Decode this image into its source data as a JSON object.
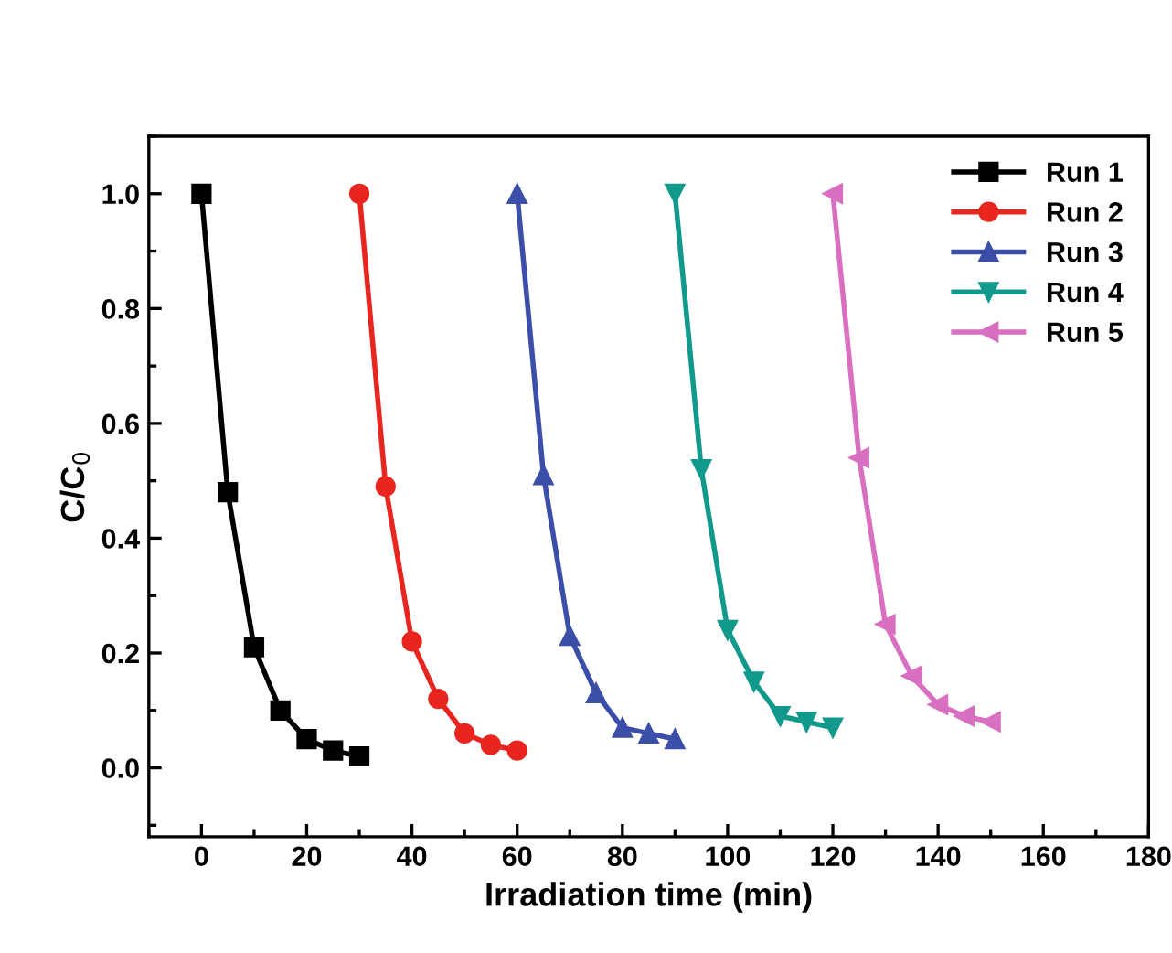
{
  "chart_data": {
    "type": "line",
    "xlabel": "Irradiation time (min)",
    "ylabel": "C/C$_{0}$",
    "xlim": [
      -10,
      180
    ],
    "ylim": [
      -0.12,
      1.1
    ],
    "xticks": [
      0,
      20,
      40,
      60,
      80,
      100,
      120,
      140,
      160,
      180
    ],
    "yticks": [
      {
        "value": 0,
        "label": "0.0"
      },
      0.2,
      0.4,
      0.6,
      0.8,
      {
        "value": 1,
        "label": "1.0"
      }
    ],
    "grid": false,
    "legend": "top right",
    "line_style": "solid",
    "series": [
      {
        "name": "Run 1",
        "color": "#000000",
        "marker": "square",
        "x": [
          0,
          5,
          10,
          15,
          20,
          25,
          30
        ],
        "values": [
          1.0,
          0.48,
          0.21,
          0.1,
          0.05,
          0.03,
          0.02
        ]
      },
      {
        "name": "Run 2",
        "color": "#e8251f",
        "marker": "circle",
        "x": [
          30,
          35,
          40,
          45,
          50,
          55,
          60
        ],
        "values": [
          1.0,
          0.49,
          0.22,
          0.12,
          0.06,
          0.04,
          0.03
        ]
      },
      {
        "name": "Run 3",
        "color": "#3b4fa8",
        "marker": "triangle-up",
        "x": [
          60,
          65,
          70,
          75,
          80,
          85,
          90
        ],
        "values": [
          1.0,
          0.51,
          0.23,
          0.13,
          0.07,
          0.06,
          0.05
        ]
      },
      {
        "name": "Run 4",
        "color": "#119a8c",
        "marker": "triangle-down",
        "x": [
          90,
          95,
          100,
          105,
          110,
          115,
          120
        ],
        "values": [
          1.0,
          0.52,
          0.24,
          0.15,
          0.09,
          0.08,
          0.07
        ]
      },
      {
        "name": "Run 5",
        "color": "#d86fc0",
        "marker": "triangle-left",
        "x": [
          120,
          125,
          130,
          135,
          140,
          145,
          150
        ],
        "values": [
          1.0,
          0.54,
          0.25,
          0.16,
          0.11,
          0.09,
          0.08
        ]
      }
    ]
  }
}
